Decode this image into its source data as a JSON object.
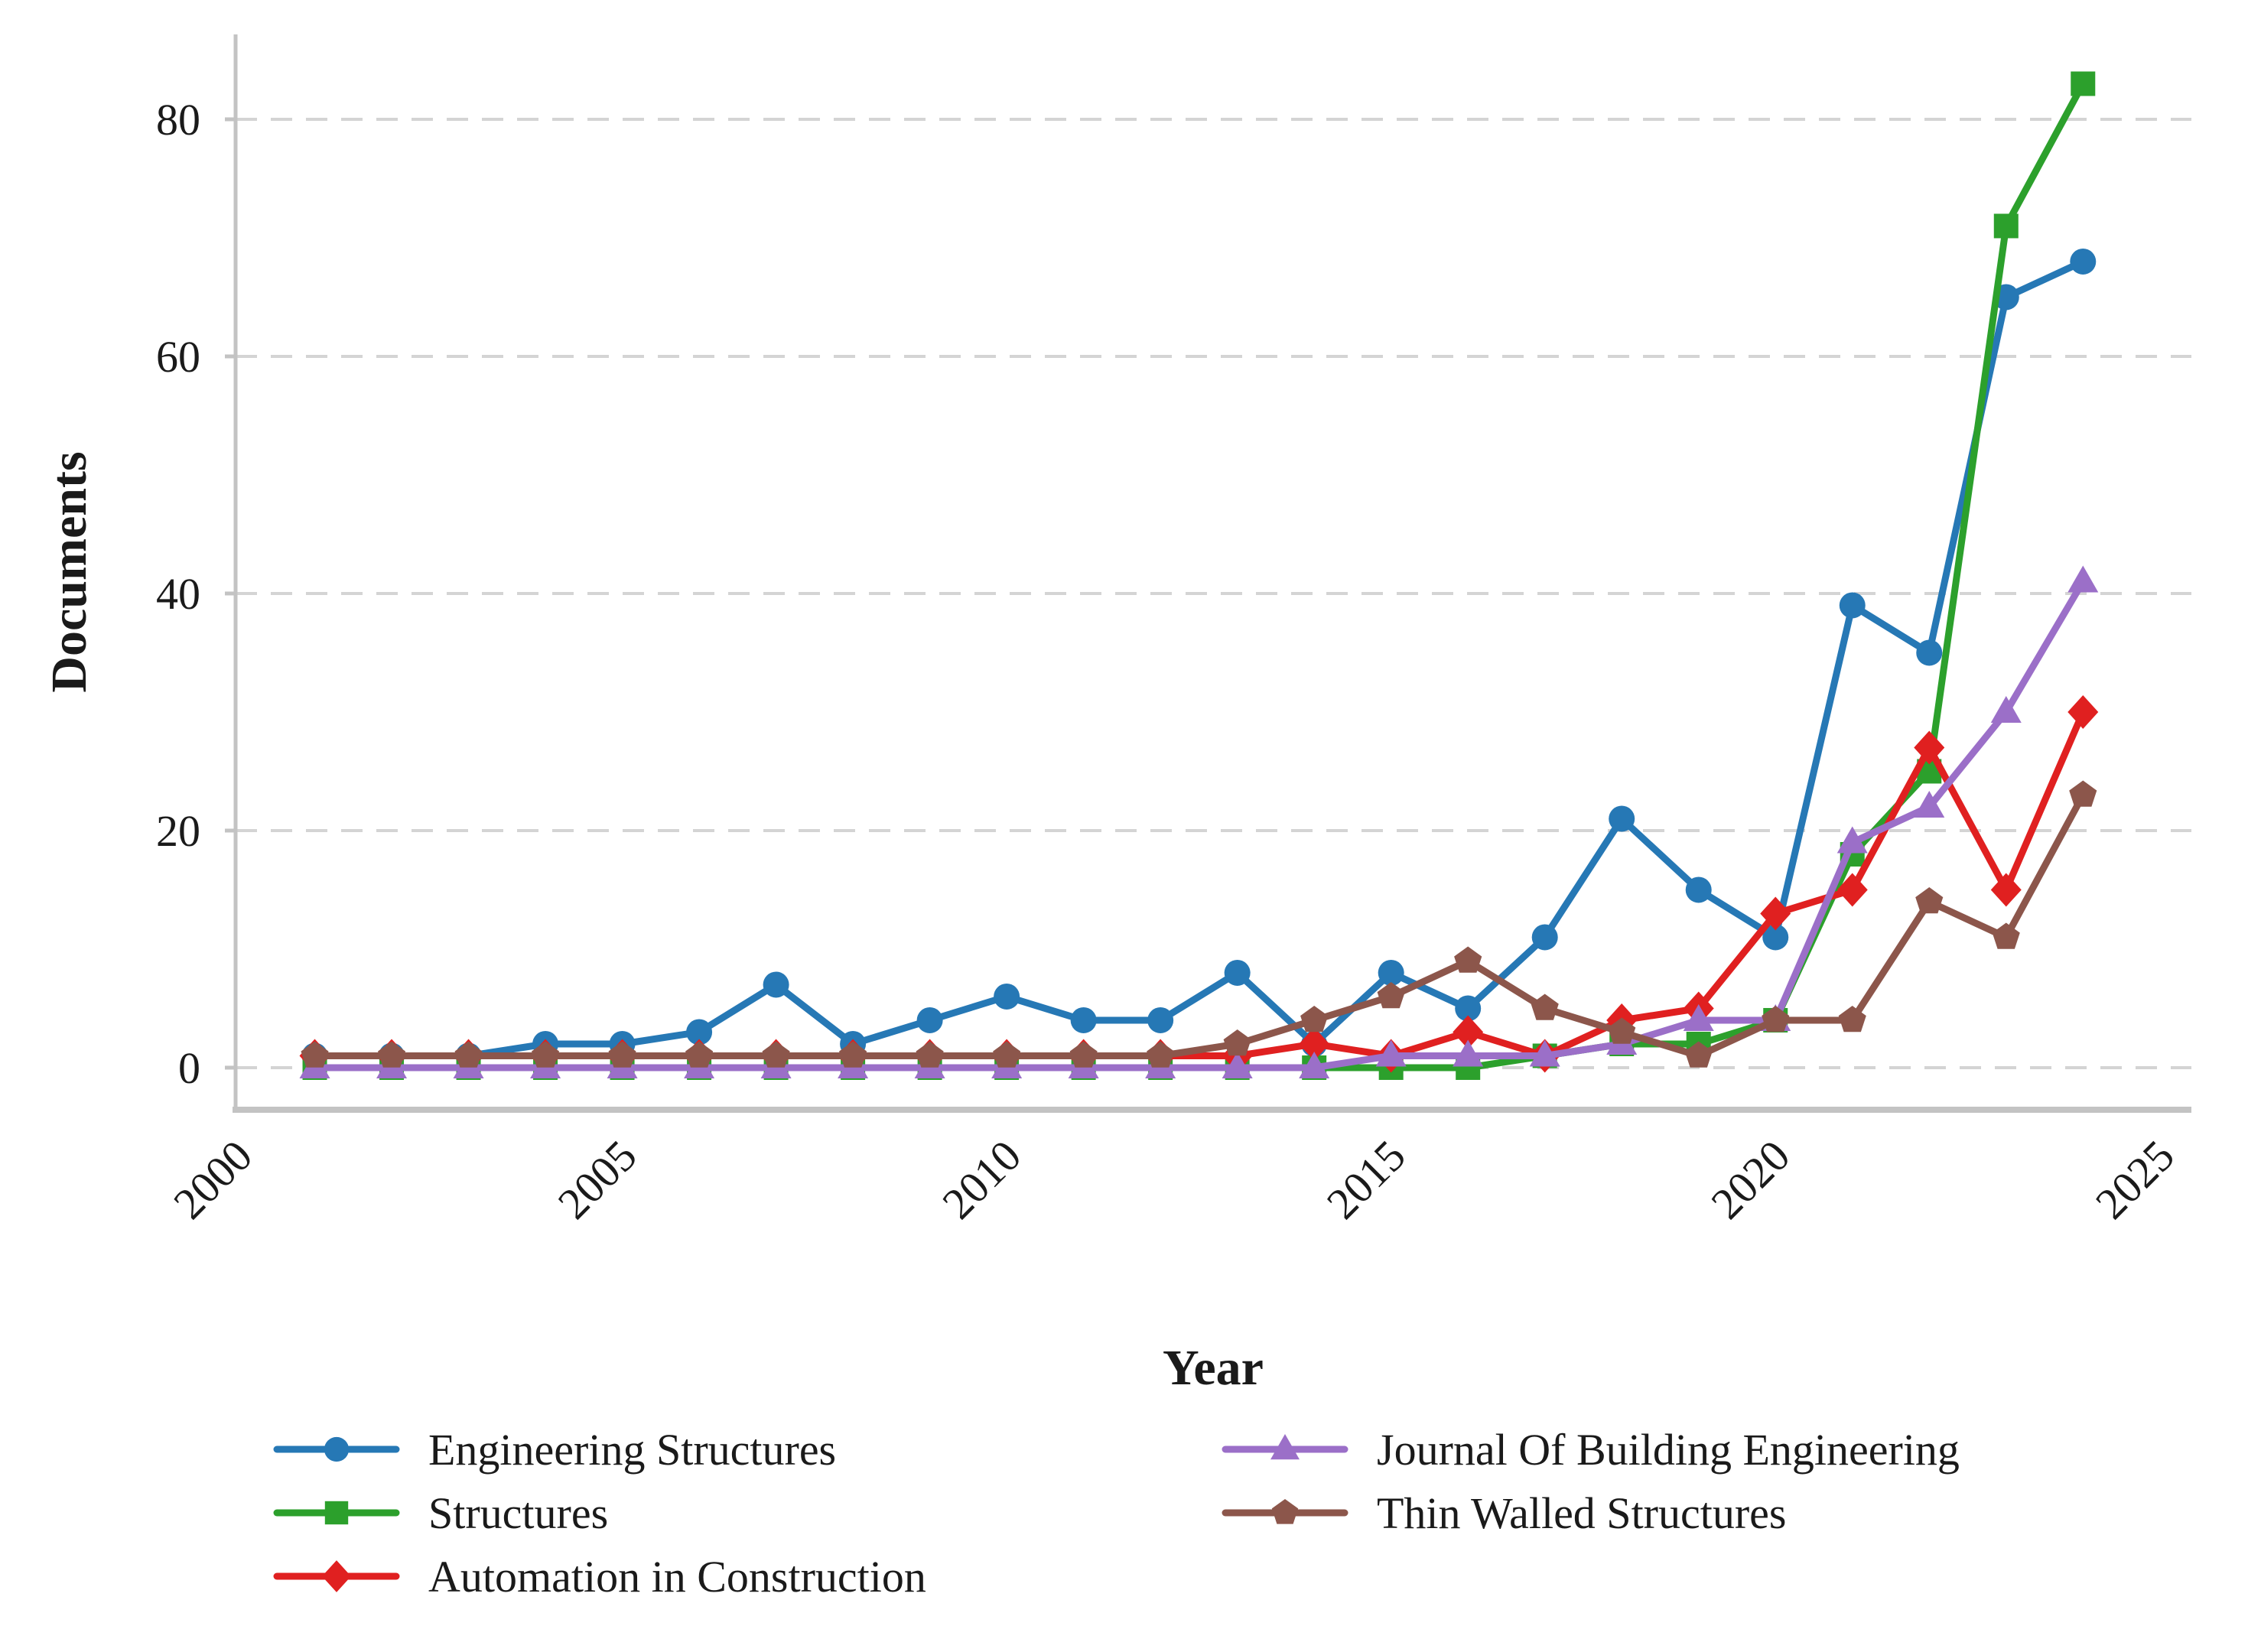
{
  "chart_data": {
    "type": "line",
    "title": "",
    "xlabel": "Year",
    "ylabel": "Documents",
    "grid": "horizontal-dashed",
    "legend_position": "below-two-columns",
    "x": [
      2001,
      2002,
      2003,
      2004,
      2005,
      2006,
      2007,
      2008,
      2009,
      2010,
      2011,
      2012,
      2013,
      2014,
      2015,
      2016,
      2017,
      2018,
      2019,
      2020,
      2021,
      2022,
      2023,
      2024
    ],
    "xlim": [
      1999.97,
      2025.41
    ],
    "ylim": [
      -3.55,
      87.16
    ],
    "xtick_labels": [
      "2000",
      "2005",
      "2010",
      "2015",
      "2020",
      "2025"
    ],
    "xtick_values": [
      2000,
      2005,
      2010,
      2015,
      2020,
      2025
    ],
    "ytick_labels": [
      "0",
      "20",
      "40",
      "60",
      "80"
    ],
    "ytick_values": [
      0,
      20,
      40,
      60,
      80
    ],
    "series": [
      {
        "name": "Engineering Structures",
        "marker": "circle",
        "color": "#2678b5",
        "values": [
          1,
          1,
          1,
          2,
          2,
          3,
          7,
          2,
          4,
          6,
          4,
          4,
          8,
          2,
          8,
          5,
          11,
          21,
          15,
          11,
          39,
          35,
          65,
          68
        ]
      },
      {
        "name": "Structures",
        "marker": "square",
        "color": "#2ca02c",
        "values": [
          0,
          0,
          0,
          0,
          0,
          0,
          0,
          0,
          0,
          0,
          0,
          0,
          0,
          0,
          0,
          0,
          1,
          2,
          2,
          4,
          18,
          25,
          71,
          83
        ]
      },
      {
        "name": "Automation in Construction",
        "marker": "diamond",
        "color": "#e02020",
        "values": [
          1,
          1,
          1,
          1,
          1,
          1,
          1,
          1,
          1,
          1,
          1,
          1,
          1,
          2,
          1,
          3,
          1,
          4,
          5,
          13,
          15,
          27,
          15,
          30
        ]
      },
      {
        "name": "Journal Of Building Engineering",
        "marker": "triangle",
        "color": "#9b6fc8",
        "values": [
          0,
          0,
          0,
          0,
          0,
          0,
          0,
          0,
          0,
          0,
          0,
          0,
          0,
          0,
          1,
          1,
          1,
          2,
          4,
          4,
          19,
          22,
          30,
          41
        ]
      },
      {
        "name": "Thin Walled Structures",
        "marker": "pentagon",
        "color": "#8c564b",
        "values": [
          1,
          1,
          1,
          1,
          1,
          1,
          1,
          1,
          1,
          1,
          1,
          1,
          2,
          4,
          6,
          9,
          5,
          3,
          1,
          4,
          4,
          14,
          11,
          23
        ]
      }
    ],
    "legend": {
      "columns": [
        [
          0,
          1,
          2
        ],
        [
          3,
          4
        ]
      ]
    },
    "colors": {
      "grid": "#d4d4d4",
      "spine": "#c3c3c3",
      "text": "#1a1a1a",
      "background": "#ffffff"
    }
  }
}
